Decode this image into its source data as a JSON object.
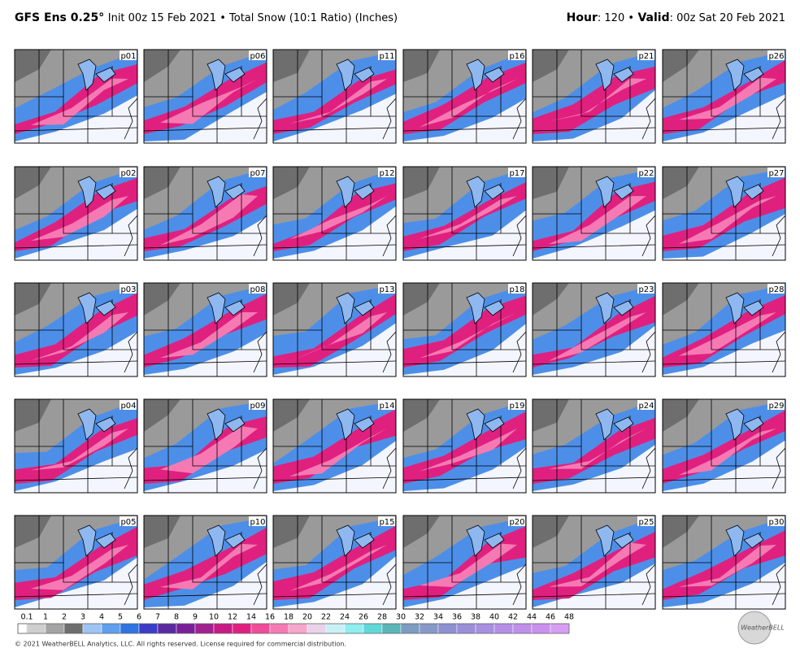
{
  "header": {
    "model": "GFS Ens 0.25°",
    "product": "Init 00z 15 Feb 2021 • Total Snow (10:1 Ratio) (Inches)",
    "hour_label": "Hour",
    "hour": ": 120 •",
    "valid_label": "Valid",
    "valid": ": 00z Sat 20 Feb 2021"
  },
  "panels": [
    "p01",
    "p06",
    "p11",
    "p16",
    "p21",
    "p26",
    "p02",
    "p07",
    "p12",
    "p17",
    "p22",
    "p27",
    "p03",
    "p08",
    "p13",
    "p18",
    "p23",
    "p28",
    "p04",
    "p09",
    "p14",
    "p19",
    "p24",
    "p29",
    "p05",
    "p10",
    "p15",
    "p20",
    "p25",
    "p30"
  ],
  "colorbar": {
    "labels": [
      "0.1",
      "1",
      "2",
      "3",
      "4",
      "5",
      "6",
      "7",
      "8",
      "9",
      "10",
      "12",
      "14",
      "16",
      "18",
      "20",
      "22",
      "24",
      "26",
      "28",
      "30",
      "32",
      "34",
      "36",
      "38",
      "40",
      "42",
      "44",
      "46",
      "48"
    ],
    "colors": [
      "#cfcfcf",
      "#a4a4a4",
      "#6e6e6e",
      "#9dc4f5",
      "#5f9ff0",
      "#2f74e0",
      "#3b3cc8",
      "#5a2aa0",
      "#7a1f9a",
      "#a3208f",
      "#c81a86",
      "#e0207f",
      "#f04c9a",
      "#f57ab4",
      "#f7a6cc",
      "#ead3ea",
      "#c9f0f5",
      "#8eeef0",
      "#60d8d8",
      "#5ab5b8",
      "#7c9cc0",
      "#8898c8",
      "#8f90d0",
      "#9a8fd8",
      "#a88fe0",
      "#b58fe6",
      "#c08fea",
      "#cb90ee",
      "#d59ef2"
    ]
  },
  "footer": {
    "copyright": "© 2021 WeatherBELL Analytics, LLC. All rights reserved. License required for commercial distribution.",
    "logo": "WeatherBELL"
  }
}
